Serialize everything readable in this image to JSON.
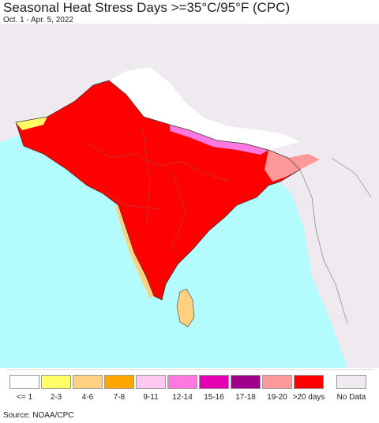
{
  "title": "Seasonal Heat Stress Days >=35°C/95°F (CPC)",
  "subtitle": "Oct. 1 - Apr. 5, 2022",
  "source": "Source: NOAA/CPC",
  "colors": {
    "ocean": "#b3fbfc",
    "land_nodata": "#eeeaf0",
    "border": "#333333",
    "heat_max": "#ff0000"
  },
  "legend": [
    {
      "label": "<= 1",
      "color": "#ffffff"
    },
    {
      "label": "2-3",
      "color": "#ffff66"
    },
    {
      "label": "4-6",
      "color": "#ffd080"
    },
    {
      "label": "7-8",
      "color": "#ffa500"
    },
    {
      "label": "9-11",
      "color": "#ffc8f0"
    },
    {
      "label": "12-14",
      "color": "#ff78e0"
    },
    {
      "label": "15-16",
      "color": "#e600b4"
    },
    {
      "label": "17-18",
      "color": "#a0008c"
    },
    {
      "label": "19-20",
      "color": "#ff9999"
    },
    {
      "label": ">20 days",
      "color": "#ff0000"
    }
  ],
  "legend_nodata": {
    "label": "No Data",
    "color": "#eeeaf0"
  }
}
